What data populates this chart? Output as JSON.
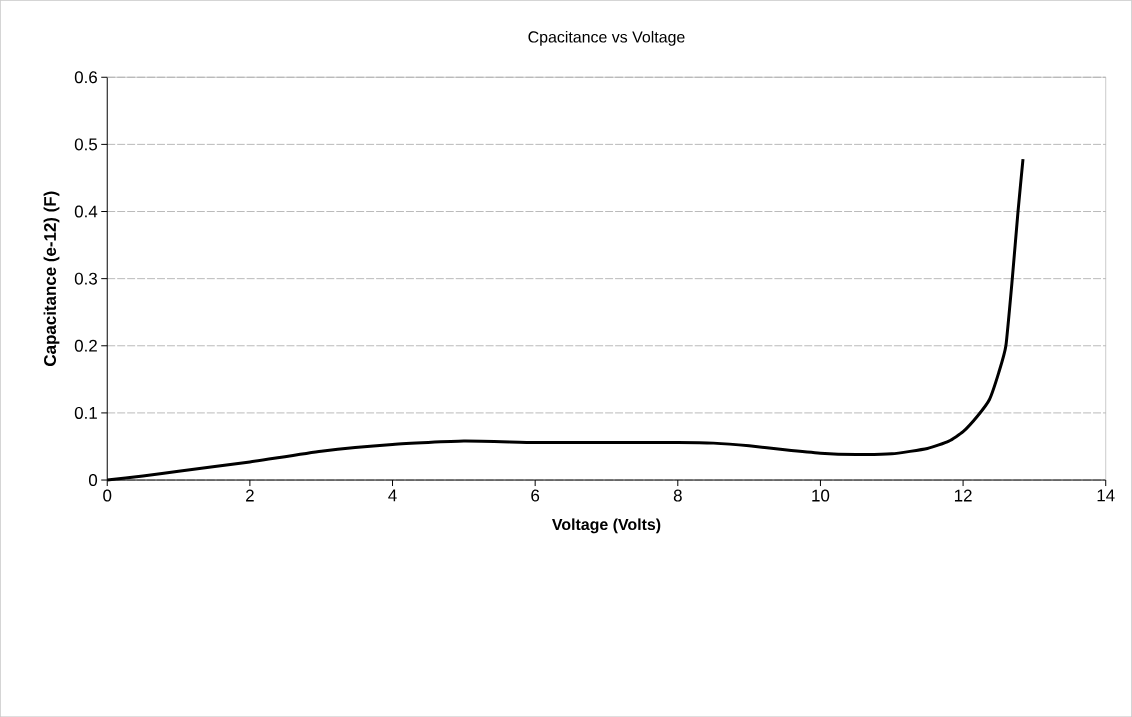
{
  "chart_data": {
    "type": "line",
    "title": "Cpacitance vs Voltage",
    "xlabel": "Voltage (Volts)",
    "ylabel": "Capacitance (e-12) (F)",
    "x": [
      0,
      0.5,
      1,
      2,
      3,
      4,
      5,
      6,
      7,
      8,
      8.5,
      9,
      9.5,
      10,
      10.5,
      11,
      11.5,
      11.8,
      12,
      12.2,
      12.37,
      12.5,
      12.6,
      12.69,
      12.77,
      12.84
    ],
    "series": [
      {
        "color": "#000000",
        "values": [
          0,
          0.006,
          0.013,
          0.027,
          0.043,
          0.053,
          0.058,
          0.056,
          0.056,
          0.056,
          0.055,
          0.051,
          0.045,
          0.04,
          0.038,
          0.039,
          0.047,
          0.058,
          0.072,
          0.095,
          0.12,
          0.16,
          0.2,
          0.3,
          0.4,
          0.478
        ]
      }
    ],
    "xlim": [
      0,
      14
    ],
    "ylim": [
      0,
      0.6
    ],
    "xticks": [
      0,
      2,
      4,
      6,
      8,
      10,
      12,
      14
    ],
    "yticks": [
      0,
      0.1,
      0.2,
      0.3,
      0.4,
      0.5,
      0.6
    ],
    "grid": "y",
    "marker": "none",
    "line_style": "solid"
  }
}
